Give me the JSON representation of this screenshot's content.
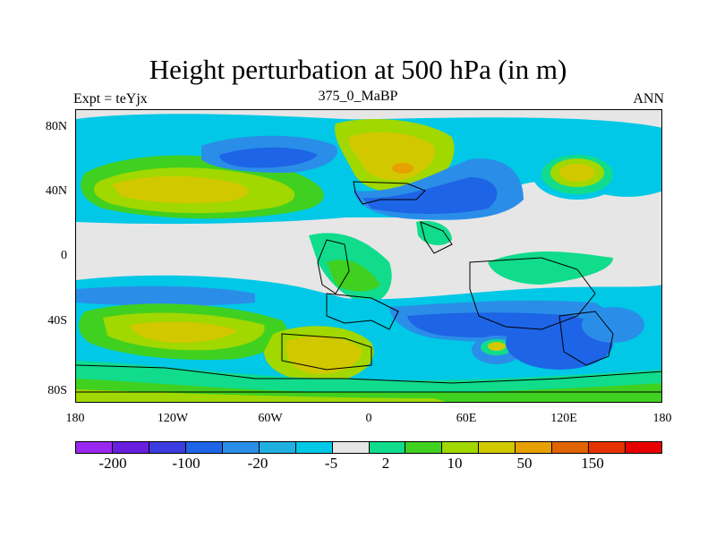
{
  "title": "Height perturbation at 500 hPa (in m)",
  "subtitle_left": "Expt = teYjx",
  "subtitle_center": "375_0_MaBP",
  "subtitle_right": "ANN",
  "y_labels": [
    "80N",
    "40N",
    "0",
    "40S",
    "80S"
  ],
  "x_labels": [
    "180",
    "120W",
    "60W",
    "0",
    "60E",
    "120E",
    "180"
  ],
  "colorbar": {
    "colors": [
      "#9a28f0",
      "#6a1ee0",
      "#3a3ce0",
      "#1e64e6",
      "#2a8ee8",
      "#20b0e0",
      "#00c8e6",
      "#e6e6e6",
      "#10dc8c",
      "#40d020",
      "#a0d800",
      "#d2c800",
      "#e6a000",
      "#e06400",
      "#e63200",
      "#e60000"
    ],
    "labels": [
      "-200",
      "-100",
      "-20",
      "-5",
      "2",
      "10",
      "50",
      "150"
    ]
  }
}
